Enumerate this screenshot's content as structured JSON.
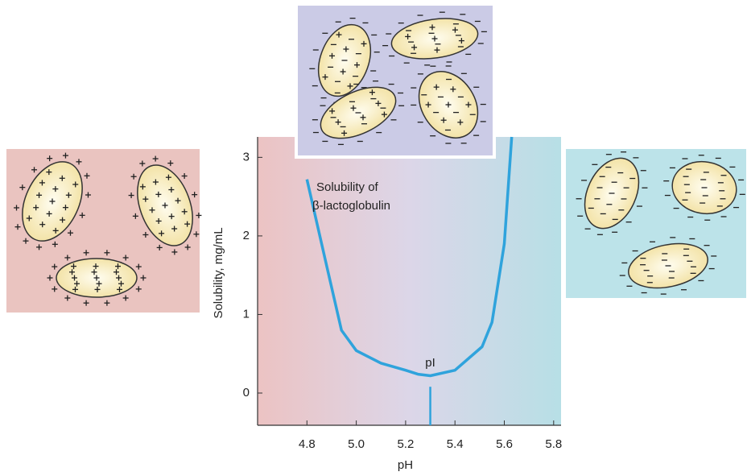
{
  "chart_data": {
    "type": "line",
    "x_label": "pH",
    "y_label": "Solubility, mg/mL",
    "x": [
      4.8,
      4.88,
      4.94,
      5.0,
      5.1,
      5.2,
      5.25,
      5.3,
      5.4,
      5.51,
      5.55,
      5.6,
      5.63
    ],
    "series": [
      {
        "color": "#2fa3dc",
        "values": [
          2.72,
          1.62,
          0.8,
          0.54,
          0.38,
          0.29,
          0.24,
          0.22,
          0.29,
          0.59,
          0.9,
          1.9,
          3.26
        ]
      }
    ],
    "xlim": [
      4.6,
      5.83
    ],
    "ylim": [
      -0.41,
      3.26
    ],
    "xticks": [
      {
        "value": 4.8,
        "label": "4.8"
      },
      {
        "value": 5.0,
        "label": "5.0"
      },
      {
        "value": 5.2,
        "label": "5.2"
      },
      {
        "value": 5.4,
        "label": "5.4"
      },
      {
        "value": 5.6,
        "label": "5.6"
      },
      {
        "value": 5.8,
        "label": "5.8"
      }
    ],
    "yticks": [
      0,
      1,
      2,
      3
    ],
    "annotations": [
      {
        "text": "Solubility of"
      },
      {
        "text": "β-lactoglobulin"
      },
      {
        "text": "pI",
        "x": 5.3
      }
    ]
  }
}
